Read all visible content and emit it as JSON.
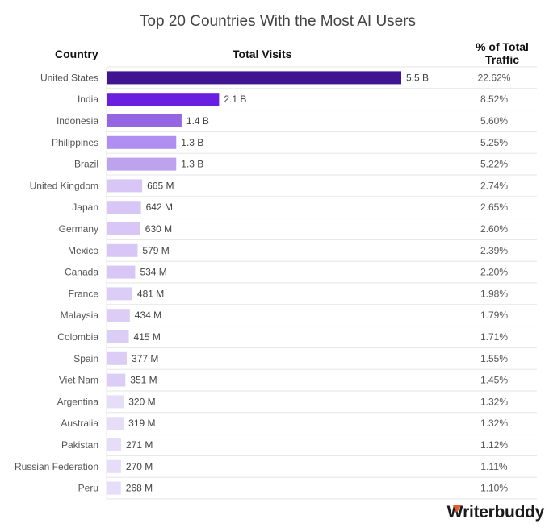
{
  "chart_data": {
    "type": "bar",
    "orientation": "horizontal",
    "title": "Top 20 Countries With the Most AI Users",
    "columns": [
      "Country",
      "Total Visits",
      "% of Total Traffic"
    ],
    "categories": [
      "United States",
      "India",
      "Indonesia",
      "Philippines",
      "Brazil",
      "United Kingdom",
      "Japan",
      "Germany",
      "Mexico",
      "Canada",
      "France",
      "Malaysia",
      "Colombia",
      "Spain",
      "Viet Nam",
      "Argentina",
      "Australia",
      "Pakistan",
      "Russian Federation",
      "Peru"
    ],
    "values_millions": [
      5500,
      2100,
      1400,
      1300,
      1300,
      665,
      642,
      630,
      579,
      534,
      481,
      434,
      415,
      377,
      351,
      320,
      319,
      271,
      270,
      268
    ],
    "value_labels": [
      "5.5 B",
      "2.1 B",
      "1.4 B",
      "1.3 B",
      "1.3 B",
      "665 M",
      "642 M",
      "630 M",
      "579 M",
      "534 M",
      "481 M",
      "434 M",
      "415 M",
      "377 M",
      "351 M",
      "320 M",
      "319 M",
      "271 M",
      "270 M",
      "268 M"
    ],
    "percent_labels": [
      "22.62%",
      "8.52%",
      "5.60%",
      "5.25%",
      "5.22%",
      "2.74%",
      "2.65%",
      "2.60%",
      "2.39%",
      "2.20%",
      "1.98%",
      "1.79%",
      "1.71%",
      "1.55%",
      "1.45%",
      "1.32%",
      "1.32%",
      "1.12%",
      "1.11%",
      "1.10%"
    ],
    "bar_colors": [
      "#3f1591",
      "#6a1fe0",
      "#9466e2",
      "#b18ef2",
      "#bea2ee",
      "#d8c7f6",
      "#d8c7f6",
      "#d8c7f6",
      "#d8c7f6",
      "#d8c7f6",
      "#dccdf7",
      "#dccdf7",
      "#dccdf7",
      "#dccdf7",
      "#dccdf7",
      "#e6ddf9",
      "#e6ddf9",
      "#e6ddf9",
      "#e6ddf9",
      "#e6ddf9"
    ]
  },
  "brand": "Writerbuddy"
}
